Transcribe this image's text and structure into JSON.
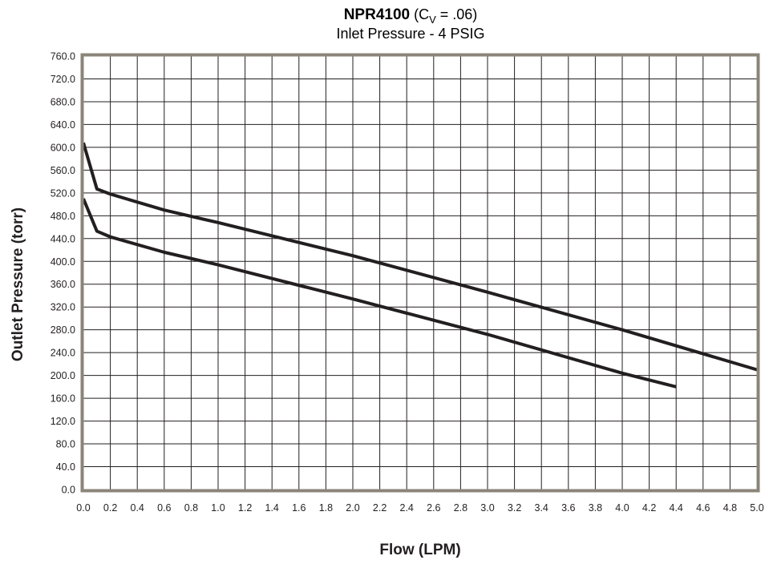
{
  "chart_data": {
    "type": "line",
    "title_model": "NPR4100",
    "title_cv_prefix": " (C",
    "title_cv_sub": "V",
    "title_cv_suffix": " = .06)",
    "subtitle": "Inlet Pressure - 4 PSIG",
    "xlabel": "Flow (LPM)",
    "ylabel": "Outlet Pressure (torr)",
    "xlim": [
      0,
      5
    ],
    "ylim": [
      0,
      760
    ],
    "grid": true,
    "legend": "none",
    "x_ticks": [
      "0.0",
      "0.2",
      "0.4",
      "0.6",
      "0.8",
      "1.0",
      "1.2",
      "1.4",
      "1.6",
      "1.8",
      "2.0",
      "2.2",
      "2.4",
      "2.6",
      "2.8",
      "3.0",
      "3.2",
      "3.4",
      "3.6",
      "3.8",
      "4.0",
      "4.2",
      "4.4",
      "4.6",
      "4.8",
      "5.0"
    ],
    "y_ticks": [
      "0.0",
      "40.0",
      "80.0",
      "120.0",
      "160.0",
      "200.0",
      "240.0",
      "280.0",
      "320.0",
      "360.0",
      "400.0",
      "440.0",
      "480.0",
      "520.0",
      "560.0",
      "600.0",
      "640.0",
      "680.0",
      "720.0",
      "760.0"
    ],
    "series": [
      {
        "x": [
          0,
          0.1,
          0.2,
          0.6,
          1.0,
          2.0,
          3.0,
          4.0,
          5.0
        ],
        "y": [
          608,
          527,
          518,
          490,
          468,
          410,
          346,
          280,
          210
        ]
      },
      {
        "x": [
          0,
          0.1,
          0.2,
          0.6,
          1.0,
          2.0,
          3.0,
          4.0,
          4.4
        ],
        "y": [
          510,
          453,
          443,
          416,
          394,
          334,
          272,
          204,
          180
        ]
      }
    ]
  },
  "colors": {
    "frame": "#8b8479",
    "grid": "#231f20",
    "line": "#231f20"
  }
}
